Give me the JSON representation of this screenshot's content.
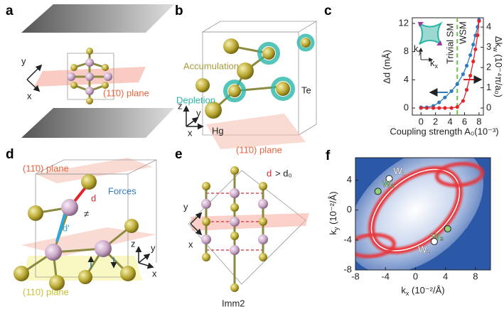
{
  "panels": {
    "a": {
      "label": "a",
      "y": "y",
      "x": "x",
      "plane": "(11̄0) plane"
    },
    "b": {
      "label": "b",
      "accumulation": "Accumulation",
      "depletion": "Depletion",
      "te": "Te",
      "hg": "Hg",
      "plane": "(11̄0) plane",
      "z": "z",
      "y": "y",
      "x": "x"
    },
    "c": {
      "label": "c"
    },
    "d": {
      "label": "d",
      "plane": "(11̄0) plane",
      "d": "d",
      "d_prime": "d'",
      "neq": "≠",
      "forces": "Forces",
      "plane110": "(110) plane",
      "z": "z",
      "y": "y",
      "x": "x"
    },
    "e": {
      "label": "e",
      "d": "d",
      "condition": "> d₀",
      "y": "y",
      "x": "x",
      "group": "Imm2"
    },
    "f": {
      "label": "f"
    }
  },
  "chart_data": [
    {
      "type": "line",
      "xlabel": "Coupling strength A₀(10⁻³)",
      "ylabel": "Δd (mÅ)",
      "y2label": {
        "base": "Δk",
        "sub": "w",
        "unit": " (10⁻⁴π/a₀)"
      },
      "xlim": [
        -1.2,
        8.6
      ],
      "xticks": [
        0,
        2,
        4,
        6,
        8
      ],
      "ylim": [
        -1,
        12.8
      ],
      "yticks": [
        0,
        4,
        8,
        12
      ],
      "y2lim": [
        -0.35,
        4.46
      ],
      "y2ticks": [
        0,
        1,
        2,
        3,
        4
      ],
      "boundary_x": 5,
      "boundary_color": "#6cc04a",
      "regions": [
        "Trivial SM",
        "WSM"
      ],
      "inset": {
        "ky": {
          "base": "k",
          "sub": "y"
        },
        "kx": {
          "base": "k",
          "sub": "x"
        }
      },
      "series": [
        {
          "color": "#2e7bbf",
          "x": [
            0,
            0.8,
            1.7,
            2.5,
            3.3,
            4.2,
            5.0,
            5.8,
            6.3,
            6.8,
            7.2,
            7.5,
            7.8,
            8.0
          ],
          "values": [
            0.1,
            0.1,
            0.3,
            0.8,
            1.5,
            2.4,
            3.4,
            4.8,
            6.0,
            7.5,
            9.0,
            10.3,
            11.5,
            12.5
          ]
        },
        {
          "color": "#e0262b",
          "axis": "y2",
          "x": [
            0,
            0.8,
            1.7,
            2.5,
            3.3,
            4.2,
            5.0,
            5.8,
            6.3,
            6.8,
            7.2,
            7.5,
            7.8,
            8.0
          ],
          "values": [
            0,
            0,
            0,
            0,
            0,
            0,
            0.05,
            0.35,
            0.9,
            1.6,
            2.3,
            2.9,
            3.6,
            4.3
          ]
        }
      ]
    },
    {
      "type": "map",
      "xlabel": {
        "base": "k",
        "sub": "x",
        "unit": " (10⁻²/Å)"
      },
      "ylabel": {
        "base": "k",
        "sub": "y",
        "unit": " (10⁻²/Å)"
      },
      "xlim": [
        -8,
        10
      ],
      "xticks": [
        -8,
        -4,
        0,
        4,
        8
      ],
      "ylim": [
        -8,
        7
      ],
      "yticks": [
        -8,
        -4,
        0,
        4
      ],
      "points": [
        {
          "label": "W₁",
          "x": -3.5,
          "y": 4.2,
          "color": "#ffffff"
        },
        {
          "label": "W₂",
          "x": -5,
          "y": 2.5,
          "color": "#8fd27a"
        },
        {
          "label": "W₂",
          "x": 4.3,
          "y": -2.5,
          "color": "#8fd27a"
        },
        {
          "label": "W₁",
          "x": 2.5,
          "y": -4.2,
          "color": "#ffffff"
        }
      ]
    }
  ]
}
